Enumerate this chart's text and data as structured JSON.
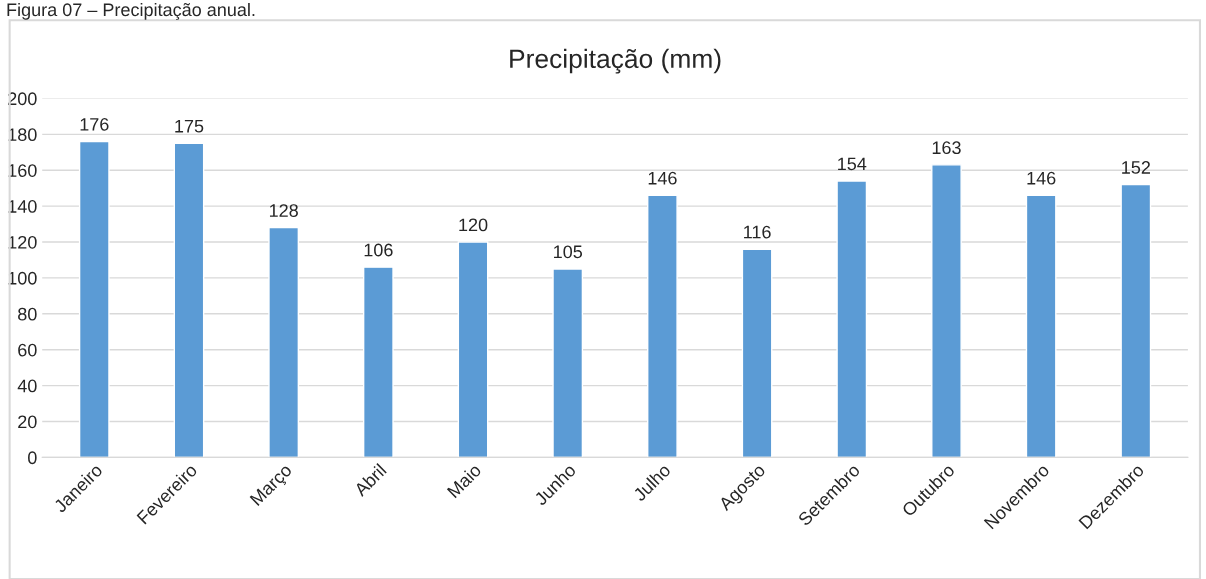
{
  "chart_data": {
    "type": "bar",
    "title": "Precipitação (mm)",
    "annotations": [
      "Figura 07 – Precipitação anual."
    ],
    "categories": [
      "Janeiro",
      "Fevereiro",
      "Março",
      "Abril",
      "Maio",
      "Junho",
      "Julho",
      "Agosto",
      "Setembro",
      "Outubro",
      "Novembro",
      "Dezembro"
    ],
    "values": [
      176,
      175,
      128,
      106,
      120,
      105,
      146,
      116,
      154,
      163,
      146,
      152
    ],
    "color": "#5b9bd5",
    "ylim": [
      0,
      200
    ],
    "yticks": [
      0,
      20,
      40,
      60,
      80,
      100,
      120,
      140,
      160,
      180,
      200
    ],
    "grid": "y",
    "data_labels": true,
    "legend": false
  }
}
